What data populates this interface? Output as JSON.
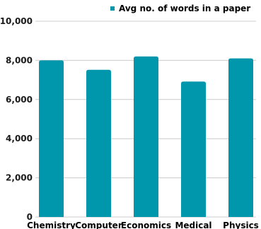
{
  "chart_data": {
    "type": "bar",
    "categories": [
      "Chemistry",
      "Computer",
      "Economics",
      "Medical",
      "Physics"
    ],
    "series": [
      {
        "name": "Avg no. of words in a paper",
        "values": [
          8000,
          7520,
          8200,
          6920,
          8100
        ]
      }
    ],
    "ylim": [
      0,
      10000
    ],
    "yticks": [
      "0",
      "2,000",
      "4,000",
      "6,000",
      "8,000",
      "10,000"
    ],
    "grid": true,
    "legend": "top-right",
    "colors": {
      "bar": "#0096AB"
    }
  }
}
